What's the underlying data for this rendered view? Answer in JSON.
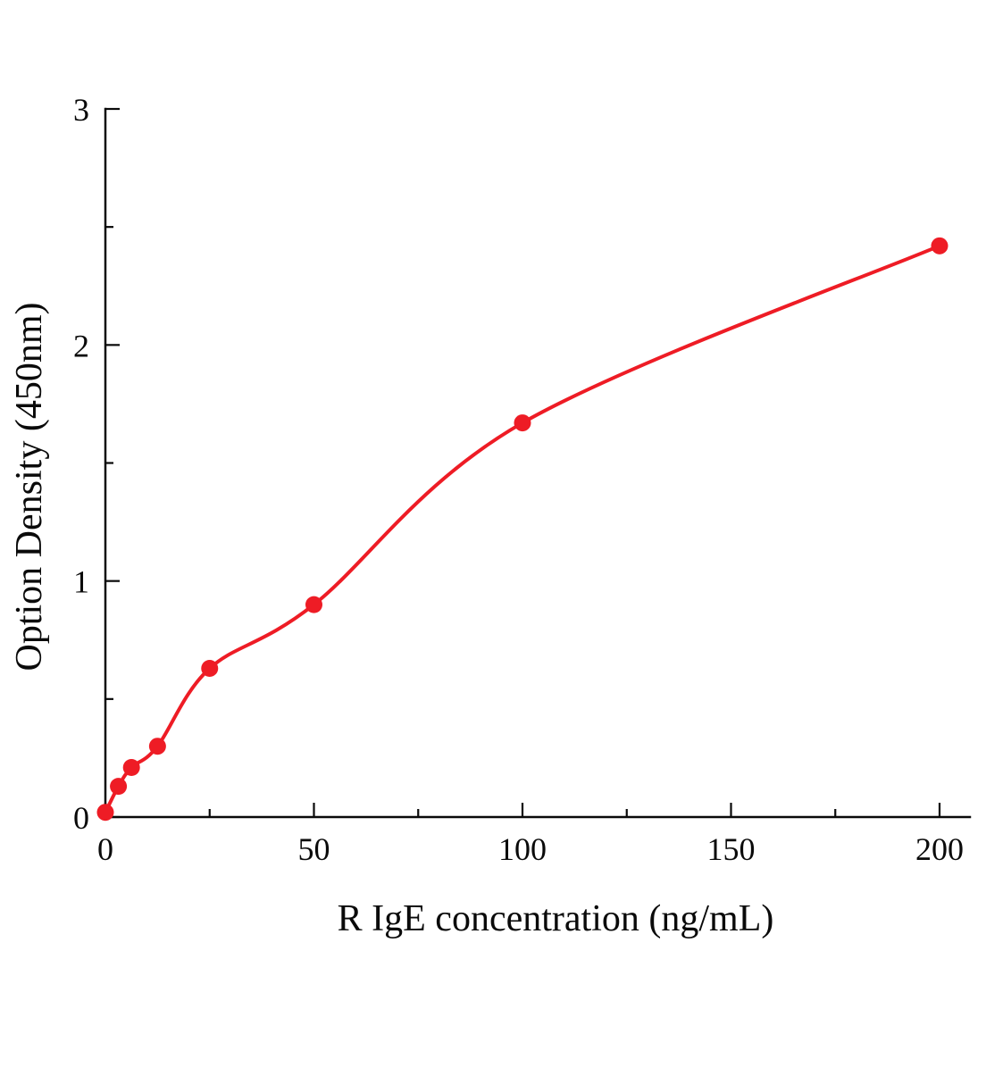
{
  "chart_data": {
    "type": "scatter",
    "title": "",
    "xlabel": "R IgE  concentration (ng/mL)",
    "ylabel": "Option Density (450nm)",
    "x_ticks": [
      0,
      50,
      100,
      150,
      200
    ],
    "y_ticks": [
      0,
      1,
      2,
      3
    ],
    "xlim": [
      0,
      200
    ],
    "ylim": [
      0,
      3
    ],
    "grid": false,
    "legend": false,
    "background": "#ffffff",
    "axis_color": "#0a0a0a",
    "series": [
      {
        "name": "R IgE standard curve",
        "marker": "circle",
        "line": "smooth",
        "color": "#ee1c25",
        "x": [
          0,
          3.125,
          6.25,
          12.5,
          25,
          50,
          100,
          200
        ],
        "y": [
          0.02,
          0.13,
          0.21,
          0.3,
          0.63,
          0.9,
          1.67,
          2.42
        ]
      }
    ]
  }
}
